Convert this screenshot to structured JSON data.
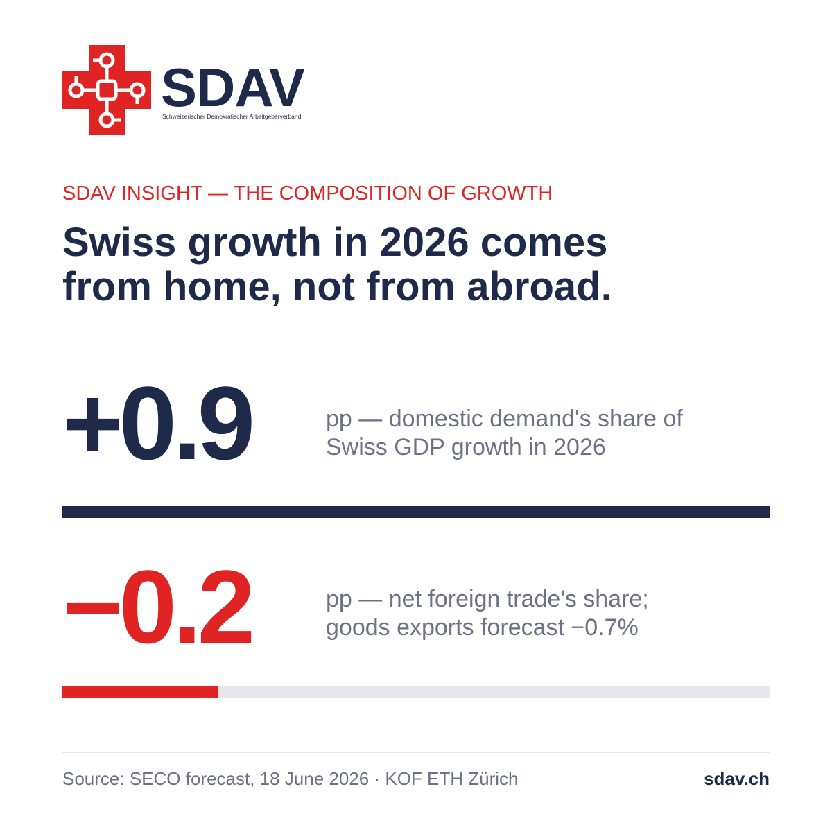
{
  "brand": {
    "name": "SDAV",
    "tagline": "Schweizerischer Demokratischer Arbeitgeberverband",
    "colors": {
      "navy": "#1f2a4a",
      "red": "#e02424",
      "muted": "#6b7286",
      "track": "#e6e7ec"
    }
  },
  "eyebrow": "SDAV INSIGHT — THE COMPOSITION OF GROWTH",
  "headline": {
    "line1": "Swiss growth in 2026 comes",
    "line2": "from home, not from abroad."
  },
  "stats": [
    {
      "value": "+0.9",
      "desc_line1": "pp — domestic demand's share of",
      "desc_line2": "Swiss GDP growth in 2026",
      "bar_fraction": 1.0
    },
    {
      "value": "−0.2",
      "desc_line1": "pp — net foreign trade's share;",
      "desc_line2": "goods exports forecast −0.7%",
      "bar_fraction": 0.22
    }
  ],
  "footer": {
    "source": "Source: SECO forecast, 18 June 2026 · KOF ETH Zürich",
    "site": "sdav.ch"
  }
}
